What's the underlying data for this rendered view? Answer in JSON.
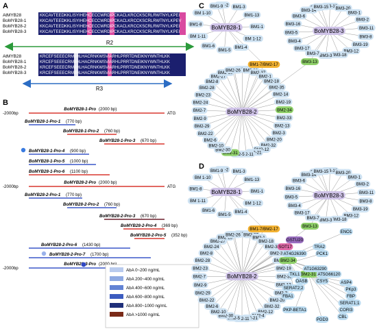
{
  "panels": {
    "a": "A",
    "b": "B",
    "c": "C",
    "d": "D"
  },
  "alignment": {
    "block1_names": [
      "AtMYB28",
      "BoMYB28-1",
      "BoMYB28-2",
      "BoMYB28-3"
    ],
    "block2_names": [
      "AtMYB28",
      "BoMYB28-1",
      "BoMYB28-2",
      "BoMYB28-3"
    ],
    "block1_rows": [
      "KKCAVTEEDKKLISYIHEHCECCWRDIPCKACLKRCCKSCRLRWTNYLKPEI",
      "KKCAVTEEDKKLISYIHEHCECCWRDIPCKACLKRCCKSCRLRWTNYLKPEV",
      "KKCAVTEEDKKLISYIHEHCECCWRDIPCKACLKRCCKSCRLRWTNYLKPEI",
      "KKCAVTEEDKKLISYIHEHCECCWRDIPCKACLKRCCKSCRLRWTNYLKPEI"
    ],
    "block2_rows": [
      "KRCEFSEEECRMIIHLHACRNKWSVIARHLPRRTDNEIKNYWNTHLKK",
      "KRCEFSEEECRMIIHLHACRNKWSVIARHLPRRTDNEIKNYWNTHLKK",
      "KRCEFSEEECRMIIHLHACRNKWSVIARHLPRRTDNEIKNYWNTHLKK",
      "KRCEFSEEECRMIIHLHACRNKWSVIARHLPRRTDNEIKNYWNTHLKK"
    ],
    "r2": "R2",
    "r3": "R3"
  },
  "promoters": {
    "start_label": "-2000bp",
    "end_label": "ATG",
    "groups": [
      {
        "title": "BoMYB28-1-Pro",
        "size": "(2000 bp)",
        "items": [
          {
            "name": "BoMYB28-1-Pro-1",
            "size": "(770 bp)"
          },
          {
            "name": "BoMYB28-1-Pro-2",
            "size": "(760 bp)"
          },
          {
            "name": "BoMYB28-1-Pro-3",
            "size": "(670 bp)"
          },
          {
            "name": "BoMYB28-1-Pro-4",
            "size": "(900 bp)"
          },
          {
            "name": "BoMYB28-1-Pro-5",
            "size": "(1000 bp)"
          },
          {
            "name": "BoMYB28-1-Pro-6",
            "size": "(1100 bp)"
          }
        ]
      },
      {
        "title": "BoMYB28-2-Pro",
        "size": "(2000 bp)",
        "items": [
          {
            "name": "BoMYB28-2-Pro-1",
            "size": "(770 bp)"
          },
          {
            "name": "BoMYB28-2-Pro-2",
            "size": "(760 bp)"
          },
          {
            "name": "BoMYB28-2-Pro-3",
            "size": "(670 bp)"
          },
          {
            "name": "BoMYB28-2-Pro-4",
            "size": "(369 bp)"
          },
          {
            "name": "BoMYB28-2-Pro-5",
            "size": "(352 bp)"
          },
          {
            "name": "BoMYB28-2-Pro-6",
            "size": "(1430 bp)"
          },
          {
            "name": "BoMYB28-2-Pro-7",
            "size": "(1700 bp)"
          }
        ]
      },
      {
        "title": "BoMYB28-3-Pro",
        "size": "(2000 bp)",
        "items": []
      }
    ],
    "legend": [
      "AbA 0~200 ng/mL",
      "AbA 200~400 ng/mL",
      "AbA 400~600 ng/mL",
      "AbA 600~800 ng/mL",
      "AbA 800~1000 ng/mL",
      "AbA >1000 ng/mL"
    ],
    "legend_colors": [
      "#b9cbee",
      "#8ea9e2",
      "#6283d4",
      "#3c5cc0",
      "#1f2f7a",
      "#7a2a18"
    ]
  },
  "network_c": {
    "hubs": [
      "BoMYB28-1",
      "BoMYB28-3",
      "BoMYB28-2"
    ],
    "hub1_targets": [
      "BM1-2",
      "BM1-3",
      "BM1-13",
      "BM1-1",
      "BM 1-12",
      "BM1-4",
      "BM1-5",
      "BM1-6",
      "BM 1-11",
      "BM1-8",
      "BM 1-10",
      "BM1-9"
    ],
    "hub3_targets": [
      "BM3-9",
      "BM3-10",
      "BM3-20",
      "BM3-1",
      "BM3-2",
      "BM3-11",
      "BM3-8",
      "BM3-19",
      "BM3-12",
      "BM3-18",
      "BM3-3",
      "BM3-7",
      "BM3-17",
      "BM3-4",
      "BM3-5",
      "BM3-16",
      "BM3-6",
      "BM3-14",
      "BM3-15"
    ],
    "shared_1_2": "BM1-7/BM2-17",
    "shared_2_3": "BM3-13",
    "hub2_targets": [
      "BM2-15",
      "BM2-16",
      "BM2-36",
      "BM2-37",
      "BM2-1",
      "BM2-18",
      "BM2-35",
      "BM2-14",
      "BM2-19",
      "BM2-34",
      "BM2-33",
      "BM2-13",
      "BM2-3",
      "BM2-20",
      "BM2-32",
      "BM2-12",
      "BM2-21",
      "BM2-11",
      "BM2-5",
      "BM2-31",
      "BM2-30",
      "BM2-10",
      "BM2-6",
      "BM2-22",
      "BM2-29",
      "BM2-9",
      "BM2-7",
      "BM2-24",
      "BM2-23",
      "BM2-28",
      "BM2-8",
      "BM2-27",
      "BM2-25",
      "BM2-26"
    ],
    "highlighted": [
      "BM2-34",
      "BM2-31"
    ]
  },
  "network_d": {
    "hubs": [
      "BoMYB28-1",
      "BoMYB28-3",
      "BoMYB28-2"
    ],
    "shared_1_2": "BM1-7/BM2-17",
    "shared_2_3": "BM3-13",
    "bridge": [
      "GSTU20",
      "SOT17",
      "TRA2",
      "AT4G26390",
      "PCK1",
      "ENO1"
    ],
    "hub1_targets": [
      "BM1-2",
      "BM1-3",
      "BM1-13",
      "BM1-1",
      "BM 1-12",
      "BM1-4",
      "BM1-5",
      "BM1-6",
      "BM 1-11",
      "BM1-8",
      "BM 1-10",
      "BM1-9"
    ],
    "hub3_targets": [
      "BM3-9",
      "BM3-10",
      "BM3-20",
      "BM3-1",
      "BM3-2",
      "BM3-11",
      "BM3-8",
      "BM3-19",
      "BM3-12",
      "BM3-18",
      "BM3-3",
      "BM3-7",
      "BM3-17",
      "BM3-4",
      "BM3-5",
      "BM3-16",
      "BM3-6",
      "BM3-14",
      "BM3-15"
    ],
    "hub2_targets": [
      "BM2-15",
      "BM2-16",
      "BM2-37",
      "BM2-1",
      "BM2-18",
      "BM2-36",
      "BM2-35",
      "BM2-14",
      "BM2-19",
      "BM2-33",
      "BM2-13",
      "BM2-3",
      "BM2-20",
      "BM2-32",
      "BM2-12",
      "BM2-4",
      "BM2-21",
      "BM2-11",
      "BM2-5",
      "BM2-30",
      "BM2-10",
      "BM2-6",
      "BM2-22",
      "BM2-29",
      "BM2-9",
      "BM2-7",
      "BM2-23",
      "BM2-28",
      "BM2-8",
      "BM2-24",
      "BM2-27",
      "BM2-25",
      "BM2-26"
    ],
    "bm234": "BM2-34",
    "bm231": "BM2-31",
    "cluster34": [
      "AT1G63290",
      "TKL1",
      "AT5G66120",
      "OASB",
      "CSY5",
      "SERAT2;2"
    ],
    "cluster31": [
      "ASP4",
      "PKp3",
      "FBP",
      "SERAT1;1",
      "CORI3",
      "CBL",
      "FBA1",
      "PKP-BETA1",
      "PGD3"
    ]
  }
}
